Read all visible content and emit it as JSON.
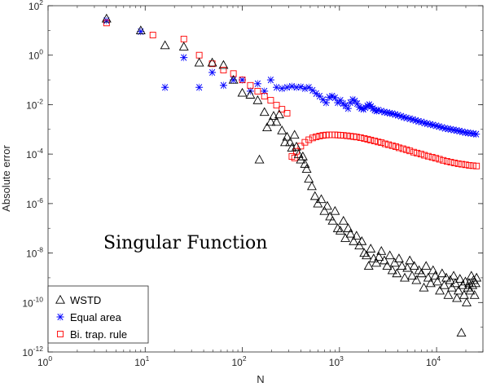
{
  "chart_data": {
    "type": "scatter",
    "title": "",
    "xlabel": "N",
    "ylabel": "Absolute error",
    "xscale": "log",
    "yscale": "log",
    "xlim": [
      1,
      30000
    ],
    "ylim": [
      1e-12,
      100
    ],
    "grid": false,
    "legend_position": "bottom-left",
    "annotation": "Singular Function",
    "x_ticks": [
      {
        "value": 1,
        "base": "10",
        "exp": "0"
      },
      {
        "value": 10,
        "base": "10",
        "exp": "1"
      },
      {
        "value": 100,
        "base": "10",
        "exp": "2"
      },
      {
        "value": 1000,
        "base": "10",
        "exp": "3"
      },
      {
        "value": 10000,
        "base": "10",
        "exp": "4"
      }
    ],
    "y_ticks": [
      {
        "value": 100,
        "base": "10",
        "exp": "2"
      },
      {
        "value": 1,
        "base": "10",
        "exp": "0"
      },
      {
        "value": 0.01,
        "base": "10",
        "exp": "-2"
      },
      {
        "value": 0.0001,
        "base": "10",
        "exp": "-4"
      },
      {
        "value": 1e-06,
        "base": "10",
        "exp": "-6"
      },
      {
        "value": 1e-08,
        "base": "10",
        "exp": "-8"
      },
      {
        "value": 1e-10,
        "base": "10",
        "exp": "-10"
      },
      {
        "value": 1e-12,
        "base": "10",
        "exp": "-12"
      }
    ],
    "series": [
      {
        "name": "WSTD",
        "marker": "triangle",
        "color": "#000000",
        "points": [
          [
            4,
            30
          ],
          [
            9,
            10
          ],
          [
            16,
            2.5
          ],
          [
            25,
            2.2
          ],
          [
            36,
            0.5
          ],
          [
            49,
            0.5
          ],
          [
            64,
            0.4
          ],
          [
            81,
            0.1
          ],
          [
            100,
            0.03
          ],
          [
            121,
            0.025
          ],
          [
            144,
            0.015
          ],
          [
            150,
            6e-05
          ],
          [
            169,
            0.005
          ],
          [
            180,
            0.0012
          ],
          [
            196,
            0.002
          ],
          [
            210,
            0.0035
          ],
          [
            225,
            0.002
          ],
          [
            240,
            0.004
          ],
          [
            256,
            0.0009
          ],
          [
            275,
            0.0003
          ],
          [
            289,
            0.0005
          ],
          [
            310,
            0.0003
          ],
          [
            324,
            0.00018
          ],
          [
            345,
            0.0006
          ],
          [
            361,
            0.0002
          ],
          [
            380,
            0.0001
          ],
          [
            400,
            6e-05
          ],
          [
            420,
            8e-05
          ],
          [
            441,
            4e-05
          ],
          [
            460,
            2.5e-05
          ],
          [
            484,
            1e-05
          ],
          [
            520,
            5e-06
          ],
          [
            560,
            2e-06
          ],
          [
            600,
            1e-06
          ],
          [
            650,
            1.5e-06
          ],
          [
            700,
            5e-07
          ],
          [
            750,
            8e-07
          ],
          [
            800,
            3e-07
          ],
          [
            850,
            2e-07
          ],
          [
            900,
            5e-07
          ],
          [
            960,
            1e-07
          ],
          [
            1020,
            8e-08
          ],
          [
            1100,
            2e-07
          ],
          [
            1150,
            4e-08
          ],
          [
            1230,
            1e-07
          ],
          [
            1300,
            6e-08
          ],
          [
            1400,
            3e-08
          ],
          [
            1500,
            5e-08
          ],
          [
            1600,
            2e-08
          ],
          [
            1700,
            3e-08
          ],
          [
            1800,
            1e-08
          ],
          [
            1900,
            8e-09
          ],
          [
            2000,
            3e-09
          ],
          [
            2100,
            1.5e-08
          ],
          [
            2250,
            6e-09
          ],
          [
            2400,
            4e-09
          ],
          [
            2550,
            7e-09
          ],
          [
            2700,
            1.2e-08
          ],
          [
            2900,
            5e-09
          ],
          [
            3100,
            3e-09
          ],
          [
            3300,
            8e-09
          ],
          [
            3500,
            2e-09
          ],
          [
            3700,
            4e-09
          ],
          [
            3900,
            1.5e-09
          ],
          [
            4100,
            6e-09
          ],
          [
            4400,
            3e-09
          ],
          [
            4700,
            1e-09
          ],
          [
            5000,
            2.5e-09
          ],
          [
            5300,
            5e-09
          ],
          [
            5600,
            1.2e-09
          ],
          [
            5900,
            3e-09
          ],
          [
            6200,
            8e-10
          ],
          [
            6600,
            2e-09
          ],
          [
            7000,
            1.5e-09
          ],
          [
            7400,
            4e-10
          ],
          [
            7800,
            3e-09
          ],
          [
            8200,
            1e-09
          ],
          [
            8700,
            6e-10
          ],
          [
            9200,
            2e-09
          ],
          [
            9700,
            1.2e-09
          ],
          [
            10200,
            7e-10
          ],
          [
            10800,
            3e-10
          ],
          [
            11400,
            1.5e-09
          ],
          [
            12000,
            5e-10
          ],
          [
            12600,
            1e-09
          ],
          [
            13200,
            2e-10
          ],
          [
            13800,
            8e-10
          ],
          [
            14400,
            4e-10
          ],
          [
            15000,
            1.2e-09
          ],
          [
            15600,
            6e-10
          ],
          [
            16200,
            1.5e-10
          ],
          [
            16800,
            3e-10
          ],
          [
            17400,
            9e-10
          ],
          [
            18000,
            6e-12
          ],
          [
            18600,
            5e-10
          ],
          [
            19200,
            2e-10
          ],
          [
            19800,
            7e-10
          ],
          [
            20400,
            1e-10
          ],
          [
            21000,
            4e-10
          ],
          [
            21600,
            6e-10
          ],
          [
            22200,
            3e-10
          ],
          [
            22800,
            1.2e-09
          ],
          [
            23400,
            5e-10
          ],
          [
            24000,
            8e-10
          ],
          [
            24600,
            2e-10
          ],
          [
            25200,
            6e-10
          ],
          [
            25800,
            1e-09
          ]
        ]
      },
      {
        "name": "Equal area",
        "marker": "asterisk",
        "color": "#0000ff",
        "points": [
          [
            4,
            25
          ],
          [
            9,
            9
          ],
          [
            16,
            0.05
          ],
          [
            25,
            0.8
          ],
          [
            36,
            0.05
          ],
          [
            49,
            0.2
          ],
          [
            64,
            0.06
          ],
          [
            81,
            0.1
          ],
          [
            100,
            0.1
          ],
          [
            121,
            0.035
          ],
          [
            144,
            0.07
          ],
          [
            169,
            0.035
          ],
          [
            196,
            0.1
          ],
          [
            225,
            0.05
          ],
          [
            256,
            0.045
          ],
          [
            289,
            0.05
          ],
          [
            324,
            0.055
          ],
          [
            361,
            0.05
          ],
          [
            400,
            0.052
          ],
          [
            441,
            0.045
          ],
          [
            484,
            0.05
          ],
          [
            529,
            0.038
          ],
          [
            576,
            0.028
          ],
          [
            625,
            0.022
          ],
          [
            676,
            0.016
          ],
          [
            729,
            0.012
          ],
          [
            784,
            0.02
          ],
          [
            841,
            0.022
          ],
          [
            900,
            0.019
          ],
          [
            961,
            0.012
          ],
          [
            1024,
            0.015
          ],
          [
            1089,
            0.011
          ],
          [
            1156,
            0.009
          ],
          [
            1225,
            0.007
          ],
          [
            1296,
            0.012
          ],
          [
            1369,
            0.016
          ],
          [
            1444,
            0.014
          ],
          [
            1521,
            0.011
          ],
          [
            1600,
            0.008
          ],
          [
            1681,
            0.007
          ],
          [
            1764,
            0.0065
          ],
          [
            1849,
            0.0075
          ],
          [
            1936,
            0.009
          ],
          [
            2025,
            0.01
          ],
          [
            2116,
            0.0085
          ],
          [
            2209,
            0.007
          ],
          [
            2304,
            0.006
          ],
          [
            2401,
            0.0055
          ],
          [
            2500,
            0.006
          ],
          [
            2700,
            0.0055
          ],
          [
            2900,
            0.005
          ],
          [
            3100,
            0.0048
          ],
          [
            3300,
            0.0045
          ],
          [
            3500,
            0.0043
          ],
          [
            3750,
            0.004
          ],
          [
            4000,
            0.0037
          ],
          [
            4300,
            0.0034
          ],
          [
            4600,
            0.0031
          ],
          [
            4900,
            0.0029
          ],
          [
            5300,
            0.0027
          ],
          [
            5700,
            0.0025
          ],
          [
            6100,
            0.0023
          ],
          [
            6500,
            0.0021
          ],
          [
            7000,
            0.002
          ],
          [
            7500,
            0.0018
          ],
          [
            8000,
            0.0017
          ],
          [
            8600,
            0.0016
          ],
          [
            9200,
            0.0015
          ],
          [
            9900,
            0.0014
          ],
          [
            10600,
            0.0013
          ],
          [
            11400,
            0.0012
          ],
          [
            12200,
            0.0011
          ],
          [
            13100,
            0.00105
          ],
          [
            14000,
            0.001
          ],
          [
            15000,
            0.00095
          ],
          [
            16100,
            0.0009
          ],
          [
            17200,
            0.00085
          ],
          [
            18400,
            0.0008
          ],
          [
            19700,
            0.00075
          ],
          [
            21000,
            0.00072
          ],
          [
            22500,
            0.0007
          ],
          [
            24000,
            0.00067
          ],
          [
            25600,
            0.00064
          ]
        ]
      },
      {
        "name": "Bi. trap. rule",
        "marker": "square",
        "color": "#ff0000",
        "points": [
          [
            4,
            20
          ],
          [
            12,
            6.5
          ],
          [
            25,
            4.5
          ],
          [
            36,
            1.0
          ],
          [
            49,
            0.45
          ],
          [
            64,
            0.25
          ],
          [
            81,
            0.18
          ],
          [
            100,
            0.1
          ],
          [
            121,
            0.06
          ],
          [
            144,
            0.035
          ],
          [
            169,
            0.022
          ],
          [
            196,
            0.015
          ],
          [
            225,
            0.0095
          ],
          [
            256,
            0.0065
          ],
          [
            289,
            0.0045
          ],
          [
            324,
            8e-05
          ],
          [
            345,
            7e-05
          ],
          [
            361,
            0.00013
          ],
          [
            400,
            0.00021
          ],
          [
            441,
            0.0003
          ],
          [
            484,
            0.00038
          ],
          [
            529,
            0.00045
          ],
          [
            576,
            0.0005
          ],
          [
            625,
            0.00054
          ],
          [
            676,
            0.00057
          ],
          [
            729,
            0.00059
          ],
          [
            784,
            0.0006
          ],
          [
            841,
            0.0006
          ],
          [
            900,
            0.0006
          ],
          [
            961,
            0.00059
          ],
          [
            1024,
            0.00058
          ],
          [
            1100,
            0.00057
          ],
          [
            1200,
            0.00055
          ],
          [
            1300,
            0.00053
          ],
          [
            1400,
            0.00051
          ],
          [
            1500,
            0.00049
          ],
          [
            1650,
            0.00046
          ],
          [
            1800,
            0.00043
          ],
          [
            1950,
            0.0004
          ],
          [
            2100,
            0.00037
          ],
          [
            2300,
            0.00034
          ],
          [
            2500,
            0.00031
          ],
          [
            2700,
            0.00029
          ],
          [
            2950,
            0.00026
          ],
          [
            3200,
            0.00024
          ],
          [
            3500,
            0.00022
          ],
          [
            3800,
            0.0002
          ],
          [
            4100,
            0.00018
          ],
          [
            4500,
            0.000165
          ],
          [
            4900,
            0.00015
          ],
          [
            5300,
            0.000135
          ],
          [
            5800,
            0.00012
          ],
          [
            6300,
            0.00011
          ],
          [
            6900,
            0.0001
          ],
          [
            7500,
            9e-05
          ],
          [
            8200,
            8.2e-05
          ],
          [
            9000,
            7.5e-05
          ],
          [
            9800,
            6.8e-05
          ],
          [
            10700,
            6.2e-05
          ],
          [
            11700,
            5.6e-05
          ],
          [
            12800,
            5.1e-05
          ],
          [
            14000,
            4.7e-05
          ],
          [
            15300,
            4.4e-05
          ],
          [
            16700,
            4.1e-05
          ],
          [
            18200,
            3.9e-05
          ],
          [
            19900,
            3.7e-05
          ],
          [
            21700,
            3.5e-05
          ],
          [
            23700,
            3.4e-05
          ],
          [
            25800,
            3.3e-05
          ]
        ]
      }
    ]
  }
}
